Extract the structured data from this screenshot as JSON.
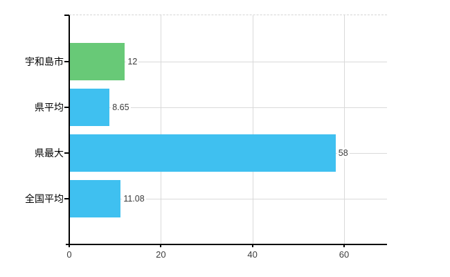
{
  "chart_data": {
    "type": "bar",
    "orientation": "horizontal",
    "title": "",
    "xlabel": "",
    "ylabel": "",
    "categories": [
      "宇和島市",
      "県平均",
      "県最大",
      "全国平均"
    ],
    "values": [
      12,
      8.65,
      58,
      11.08
    ],
    "value_labels": [
      "12",
      "8.65",
      "58",
      "11.08"
    ],
    "bar_colors": [
      "#68c977",
      "#3fc0f0",
      "#3fc0f0",
      "#3fc0f0"
    ],
    "x_ticks": [
      0,
      20,
      40,
      60
    ],
    "x_tick_labels": [
      "0",
      "20",
      "40",
      "60"
    ],
    "xlim": [
      0,
      69.4
    ],
    "grid": true,
    "legend": false
  },
  "colors": {
    "background": "#ffffff",
    "axis": "#000000",
    "grid": "#d9d9d9",
    "category_text": "#000000",
    "value_text": "#3a3a3a",
    "tick_text": "#3d3d3d"
  }
}
